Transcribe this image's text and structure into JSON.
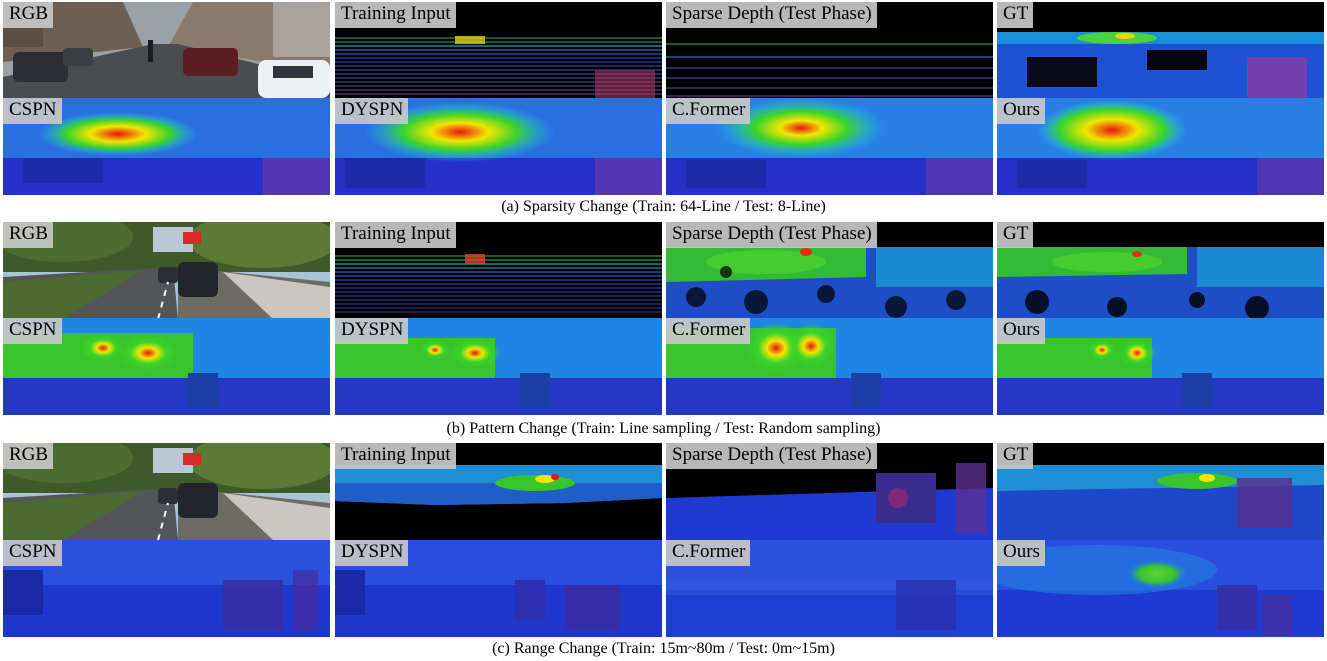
{
  "groups": [
    {
      "caption": "(a) Sparsity Change (Train: 64-Line / Test: 8-Line)",
      "labels": [
        "RGB",
        "Training Input",
        "Sparse Depth (Test Phase)",
        "GT",
        "CSPN",
        "DYSPN",
        "C.Former",
        "Ours"
      ]
    },
    {
      "caption": "(b) Pattern Change (Train: Line sampling / Test: Random sampling)",
      "labels": [
        "RGB",
        "Training Input",
        "Sparse Depth (Test Phase)",
        "GT",
        "CSPN",
        "DYSPN",
        "C.Former",
        "Ours"
      ]
    },
    {
      "caption": "(c) Range Change (Train: 15m~80m / Test: 0m~15m)",
      "labels": [
        "RGB",
        "Training Input",
        "Sparse Depth (Test Phase)",
        "GT",
        "CSPN",
        "DYSPN",
        "C.Former",
        "Ours"
      ]
    }
  ],
  "colors": {
    "depth_far": "#1a1fd0",
    "depth_mid": "#19c8ff",
    "depth_green": "#39d42c",
    "depth_yellow": "#f2e600",
    "depth_red": "#e81414",
    "sky": "#000000"
  }
}
